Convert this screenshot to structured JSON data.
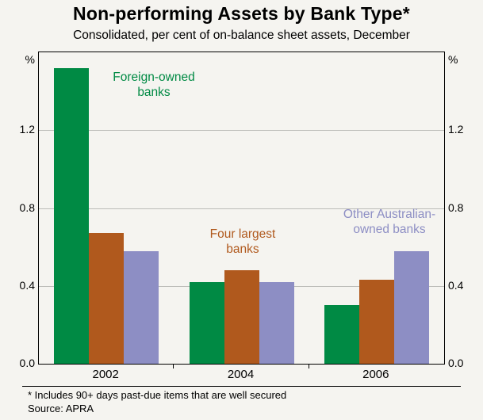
{
  "title": "Non-performing Assets by Bank Type*",
  "subtitle": "Consolidated, per cent of on-balance sheet assets, December",
  "footnote": "*  Includes 90+ days past-due items that are well secured",
  "source": "Source: APRA",
  "chart_data": {
    "type": "bar",
    "title": "Non-performing Assets by Bank Type*",
    "subtitle": "Consolidated, per cent of on-balance sheet assets, December",
    "categories": [
      "2002",
      "2004",
      "2006"
    ],
    "series": [
      {
        "name": "Foreign-owned banks",
        "color": "#008a44",
        "values": [
          1.52,
          0.42,
          0.3
        ]
      },
      {
        "name": "Four largest banks",
        "color": "#b0591d",
        "values": [
          0.67,
          0.48,
          0.43
        ]
      },
      {
        "name": "Other Australian-owned banks",
        "color": "#8d8ec4",
        "values": [
          0.58,
          0.42,
          0.58
        ]
      }
    ],
    "y_unit": "%",
    "ylim": [
      0,
      1.6
    ],
    "yticks": [
      0.0,
      0.4,
      0.8,
      1.2
    ],
    "grid": "horizontal",
    "legend_position": "in-plot-annotations",
    "annotations": [
      {
        "lines": [
          "Foreign-owned",
          "banks"
        ],
        "color": "#008a44"
      },
      {
        "lines": [
          "Four largest",
          "banks"
        ],
        "color": "#b0591d"
      },
      {
        "lines": [
          "Other Australian-",
          "owned banks"
        ],
        "color": "#8d8ec4"
      }
    ]
  }
}
